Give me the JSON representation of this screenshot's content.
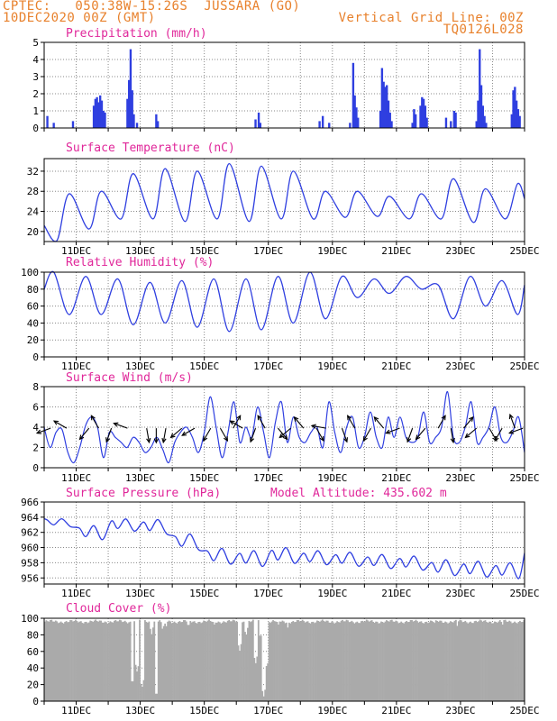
{
  "header": {
    "line1": "CPTEC:   050:38W-15:26S  JUSSARA (GO)",
    "line2": "10DEC2020 00Z (GMT)",
    "right1": "Vertical Grid Line: 00Z",
    "right2": "TQ0126L028"
  },
  "colors": {
    "header": "#e8812c",
    "title": "#e0279a",
    "series": "#2f3fe0",
    "cloud": "#aaaaaa"
  },
  "chart_data": [
    {
      "type": "bar",
      "title": "Precipitation (mm/h)",
      "ylim": [
        0,
        5
      ],
      "yticks": [
        0,
        1,
        2,
        3,
        4,
        5
      ],
      "xticks": [],
      "x_start_day": 10,
      "x_end_day": 25,
      "step_hours": 3,
      "bars": [
        {
          "day": 10.1,
          "v": 0.7
        },
        {
          "day": 10.3,
          "v": 0.3
        },
        {
          "day": 10.9,
          "v": 0.4
        },
        {
          "day": 11.55,
          "v": 1.3
        },
        {
          "day": 11.6,
          "v": 1.7
        },
        {
          "day": 11.65,
          "v": 1.8
        },
        {
          "day": 11.7,
          "v": 1.5
        },
        {
          "day": 11.75,
          "v": 1.9
        },
        {
          "day": 11.8,
          "v": 1.6
        },
        {
          "day": 11.85,
          "v": 1.0
        },
        {
          "day": 11.9,
          "v": 0.9
        },
        {
          "day": 12.6,
          "v": 1.7
        },
        {
          "day": 12.65,
          "v": 2.8
        },
        {
          "day": 12.7,
          "v": 4.6
        },
        {
          "day": 12.75,
          "v": 2.2
        },
        {
          "day": 12.8,
          "v": 0.8
        },
        {
          "day": 12.9,
          "v": 0.3
        },
        {
          "day": 13.5,
          "v": 0.8
        },
        {
          "day": 13.55,
          "v": 0.4
        },
        {
          "day": 16.6,
          "v": 0.5
        },
        {
          "day": 16.7,
          "v": 0.9
        },
        {
          "day": 16.75,
          "v": 0.3
        },
        {
          "day": 18.6,
          "v": 0.4
        },
        {
          "day": 18.7,
          "v": 0.7
        },
        {
          "day": 18.9,
          "v": 0.3
        },
        {
          "day": 19.55,
          "v": 0.3
        },
        {
          "day": 19.65,
          "v": 3.8
        },
        {
          "day": 19.7,
          "v": 1.9
        },
        {
          "day": 19.75,
          "v": 1.2
        },
        {
          "day": 19.8,
          "v": 0.6
        },
        {
          "day": 20.5,
          "v": 1.0
        },
        {
          "day": 20.55,
          "v": 3.5
        },
        {
          "day": 20.6,
          "v": 2.7
        },
        {
          "day": 20.65,
          "v": 2.4
        },
        {
          "day": 20.7,
          "v": 2.5
        },
        {
          "day": 20.75,
          "v": 1.6
        },
        {
          "day": 20.8,
          "v": 0.9
        },
        {
          "day": 20.85,
          "v": 0.4
        },
        {
          "day": 21.5,
          "v": 0.3
        },
        {
          "day": 21.55,
          "v": 1.1
        },
        {
          "day": 21.6,
          "v": 0.8
        },
        {
          "day": 21.75,
          "v": 1.3
        },
        {
          "day": 21.8,
          "v": 1.8
        },
        {
          "day": 21.85,
          "v": 1.7
        },
        {
          "day": 21.9,
          "v": 1.3
        },
        {
          "day": 21.95,
          "v": 0.6
        },
        {
          "day": 22.55,
          "v": 0.6
        },
        {
          "day": 22.7,
          "v": 0.4
        },
        {
          "day": 22.8,
          "v": 1.0
        },
        {
          "day": 22.85,
          "v": 0.9
        },
        {
          "day": 23.5,
          "v": 0.4
        },
        {
          "day": 23.55,
          "v": 1.6
        },
        {
          "day": 23.6,
          "v": 4.6
        },
        {
          "day": 23.65,
          "v": 2.5
        },
        {
          "day": 23.7,
          "v": 1.3
        },
        {
          "day": 23.75,
          "v": 0.7
        },
        {
          "day": 23.8,
          "v": 0.3
        },
        {
          "day": 24.6,
          "v": 0.8
        },
        {
          "day": 24.65,
          "v": 2.2
        },
        {
          "day": 24.7,
          "v": 2.4
        },
        {
          "day": 24.75,
          "v": 1.6
        },
        {
          "day": 24.8,
          "v": 1.1
        },
        {
          "day": 24.85,
          "v": 0.7
        }
      ]
    },
    {
      "type": "line",
      "title": "Surface Temperature (nC)",
      "ylim": [
        18,
        34.5
      ],
      "yticks": [
        20,
        24,
        28,
        32
      ],
      "xticks": [
        "11DEC",
        "13DEC",
        "15DEC",
        "17DEC",
        "19DEC",
        "21DEC",
        "23DEC",
        "25DEC"
      ],
      "daily_min": [
        18.2,
        20.5,
        22.5,
        22.5,
        22.0,
        22.5,
        22.0,
        22.5,
        22.5,
        22.8,
        23.0,
        22.5,
        22.5,
        21.8,
        22.5
      ],
      "daily_max": [
        27.5,
        28.0,
        31.5,
        32.5,
        32.0,
        33.5,
        33.0,
        32.0,
        28.0,
        28.0,
        27.0,
        27.5,
        30.5,
        28.5,
        29.5
      ],
      "start_value": 21.2,
      "end_value": 26.5
    },
    {
      "type": "line",
      "title": "Relative Humidity (%)",
      "ylim": [
        0,
        100
      ],
      "yticks": [
        0,
        20,
        40,
        60,
        80,
        100
      ],
      "xticks": [
        "11DEC",
        "13DEC",
        "15DEC",
        "17DEC",
        "19DEC",
        "21DEC",
        "23DEC",
        "25DEC"
      ],
      "daily_max": [
        100,
        95,
        92,
        88,
        90,
        92,
        92,
        95,
        100,
        95,
        92,
        95,
        85,
        95,
        90
      ],
      "daily_min": [
        50,
        50,
        38,
        40,
        35,
        30,
        32,
        40,
        45,
        70,
        75,
        80,
        45,
        60,
        50
      ],
      "start_value": 80,
      "end_value": 85
    },
    {
      "type": "line",
      "title": "Surface Wind (m/s)",
      "ylim": [
        0,
        8
      ],
      "yticks": [
        0,
        2,
        4,
        6,
        8
      ],
      "xticks": [
        "11DEC",
        "13DEC",
        "15DEC",
        "17DEC",
        "19DEC",
        "21DEC",
        "23DEC",
        "25DEC"
      ],
      "speed_6h": [
        4.0,
        2.0,
        3.5,
        3.8,
        1.5,
        0.5,
        2.0,
        4.2,
        5.0,
        4.0,
        1.0,
        3.5,
        3.0,
        2.5,
        2.0,
        3.0,
        2.5,
        1.5,
        2.0,
        3.0,
        1.8,
        0.5,
        2.5,
        3.5,
        4.0,
        3.0,
        1.5,
        3.5,
        7.0,
        4.0,
        1.0,
        3.5,
        6.5,
        2.5,
        4.0,
        3.0,
        6.0,
        3.5,
        1.0,
        4.5,
        6.5,
        2.5,
        5.0,
        3.0,
        2.5,
        3.5,
        4.0,
        2.0,
        6.5,
        3.5,
        1.5,
        4.0,
        5.0,
        2.0,
        3.0,
        5.5,
        3.0,
        2.0,
        5.0,
        3.0,
        5.0,
        3.0,
        2.5,
        3.0,
        5.5,
        2.5,
        3.0,
        4.0,
        7.5,
        3.0,
        2.5,
        4.0,
        6.5,
        2.5,
        3.0,
        4.0,
        6.0,
        3.0,
        2.5,
        3.5,
        5.0,
        1.5
      ],
      "arrow_days": [
        10.2,
        10.7,
        11.4,
        11.7,
        12.1,
        12.6,
        13.2,
        13.5,
        13.8,
        14.3,
        14.7,
        15.2,
        15.5,
        15.9,
        16.2,
        16.6,
        16.9,
        17.3,
        17.7,
        18.1,
        18.5,
        18.8,
        19.3,
        19.7,
        20.2,
        20.6,
        21.1,
        21.5,
        21.9,
        22.3,
        22.7,
        23.1,
        23.5,
        23.9,
        24.3,
        24.7,
        24.95
      ],
      "arrow_angles": [
        200,
        150,
        230,
        120,
        250,
        160,
        280,
        270,
        260,
        220,
        210,
        240,
        300,
        60,
        150,
        250,
        120,
        310,
        220,
        130,
        300,
        170,
        290,
        120,
        240,
        130,
        200,
        250,
        230,
        60,
        280,
        50,
        220,
        300,
        240,
        110,
        200
      ]
    },
    {
      "type": "line",
      "title": "Surface Pressure (hPa)",
      "annotation": "Model Altitude: 435.602  m",
      "ylim": [
        955.2,
        966
      ],
      "yticks": [
        956,
        958,
        960,
        962,
        964,
        966
      ],
      "xticks": [
        "11DEC",
        "13DEC",
        "15DEC",
        "17DEC",
        "19DEC",
        "21DEC",
        "23DEC",
        "25DEC"
      ],
      "daily_mean": [
        963.3,
        962.0,
        963.0,
        962.8,
        960.8,
        958.9,
        958.6,
        959.0,
        958.7,
        958.5,
        958.2,
        958.0,
        957.4,
        957.2,
        957.0
      ],
      "daily_amp": [
        0.9,
        1.6,
        1.4,
        1.6,
        1.8,
        1.8,
        1.8,
        1.8,
        1.6,
        1.6,
        1.6,
        1.6,
        1.8,
        1.8,
        1.8
      ],
      "start_value": 963.8,
      "end_value": 959.3
    },
    {
      "type": "area",
      "title": "Cloud Cover (%)",
      "ylim": [
        0,
        100
      ],
      "yticks": [
        0,
        20,
        40,
        60,
        80,
        100
      ],
      "xticks": [
        "11DEC",
        "13DEC",
        "15DEC",
        "17DEC",
        "19DEC",
        "21DEC",
        "23DEC",
        "25DEC"
      ],
      "baseline": 96,
      "dips": [
        {
          "day": 12.75,
          "v": 20
        },
        {
          "day": 12.9,
          "v": 35
        },
        {
          "day": 13.05,
          "v": 15
        },
        {
          "day": 13.35,
          "v": 80
        },
        {
          "day": 13.5,
          "v": 5
        },
        {
          "day": 13.7,
          "v": 85
        },
        {
          "day": 13.8,
          "v": 88
        },
        {
          "day": 14.5,
          "v": 88
        },
        {
          "day": 15.3,
          "v": 90
        },
        {
          "day": 16.1,
          "v": 60
        },
        {
          "day": 16.3,
          "v": 78
        },
        {
          "day": 16.6,
          "v": 45
        },
        {
          "day": 16.75,
          "v": 75
        },
        {
          "day": 16.85,
          "v": 5
        },
        {
          "day": 16.95,
          "v": 40
        },
        {
          "day": 17.3,
          "v": 90
        },
        {
          "day": 17.6,
          "v": 88
        },
        {
          "day": 18.3,
          "v": 92
        },
        {
          "day": 22.2,
          "v": 92
        },
        {
          "day": 22.9,
          "v": 90
        },
        {
          "day": 24.3,
          "v": 90
        }
      ]
    }
  ]
}
